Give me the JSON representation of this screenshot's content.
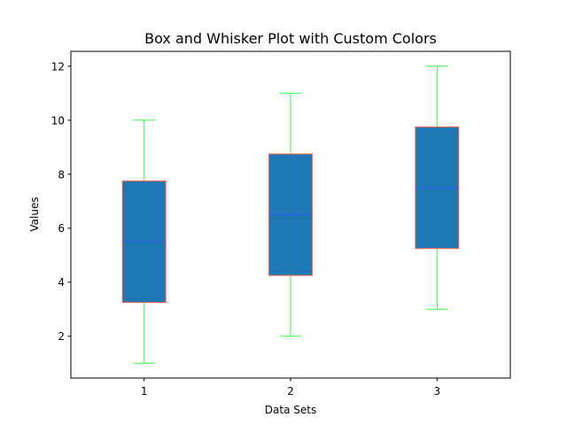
{
  "chart_data": {
    "type": "box",
    "title": "Box and Whisker Plot with Custom Colors",
    "xlabel": "Data Sets",
    "ylabel": "Values",
    "categories": [
      "1",
      "2",
      "3"
    ],
    "boxes": [
      {
        "category": "1",
        "whisker_low": 1,
        "q1": 3.25,
        "median": 5.5,
        "q3": 7.75,
        "whisker_high": 10
      },
      {
        "category": "2",
        "whisker_low": 2,
        "q1": 4.25,
        "median": 6.5,
        "q3": 8.75,
        "whisker_high": 11
      },
      {
        "category": "3",
        "whisker_low": 3,
        "q1": 5.25,
        "median": 7.5,
        "q3": 9.75,
        "whisker_high": 12
      }
    ],
    "ylim": [
      0.45,
      12.55
    ],
    "yticks": [
      2,
      4,
      6,
      8,
      10,
      12
    ],
    "xlim": [
      0.5,
      3.5
    ],
    "grid": false,
    "colors": {
      "box_fill": "#1f77b4",
      "box_edge": "#ff6347",
      "whisker": "#33ff44",
      "median": "#3355ff"
    }
  }
}
